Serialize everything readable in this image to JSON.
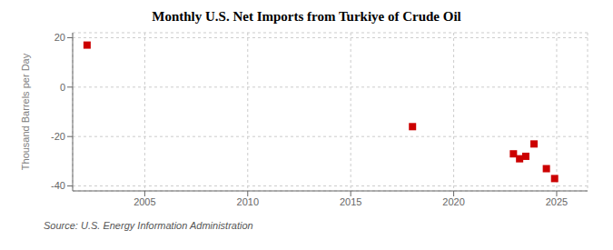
{
  "chart_data": {
    "type": "scatter",
    "title": "Monthly U.S. Net Imports from Turkiye of Crude Oil",
    "ylabel": "Thousand Barrels per Day",
    "annotations": [
      "Source: U.S. Energy Information Administration"
    ],
    "x": [
      2002.2,
      2018.0,
      2022.9,
      2023.2,
      2023.5,
      2023.9,
      2024.5,
      2024.9
    ],
    "values": [
      17,
      -16,
      -27,
      -29,
      -28,
      -23,
      -33,
      -37
    ],
    "color": "#cc0000",
    "marker": "square",
    "xlim": [
      2001.5,
      2026.5
    ],
    "ylim": [
      -42,
      22
    ],
    "xticks": [
      2005,
      2010,
      2015,
      2020,
      2025
    ],
    "yticks": [
      -40,
      -20,
      0,
      20
    ],
    "grid": true
  }
}
